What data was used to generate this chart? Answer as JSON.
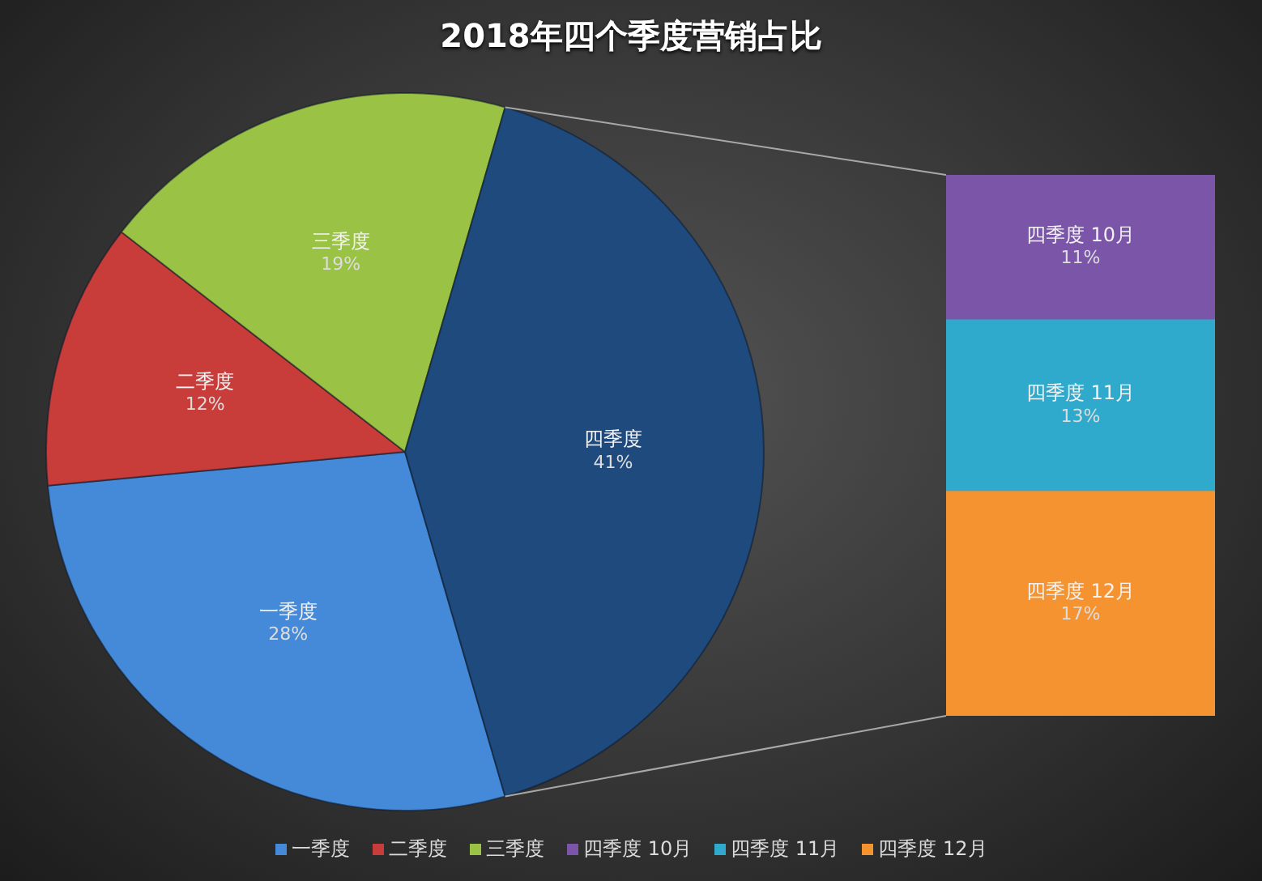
{
  "chart_data": [
    {
      "type": "pie",
      "title": "2018年四个季度营销占比",
      "categories": [
        "一季度",
        "二季度",
        "三季度",
        "四季度"
      ],
      "values": [
        28,
        12,
        19,
        41
      ],
      "colors": [
        "#4589d9",
        "#c83c3a",
        "#9ac244",
        "#1f4a7e"
      ],
      "value_labels": [
        "28%",
        "12%",
        "19%",
        "41%"
      ],
      "legend": "bottom"
    },
    {
      "type": "bar",
      "stacked": true,
      "categories": [
        null
      ],
      "series": [
        {
          "name": "四季度 12月",
          "color": "#f59330",
          "values": [
            17
          ],
          "value_labels": [
            "17%"
          ]
        },
        {
          "name": "四季度 11月",
          "color": "#2fa9cc",
          "values": [
            13
          ],
          "value_labels": [
            "13%"
          ]
        },
        {
          "name": "四季度 10月",
          "color": "#7b55a8",
          "values": [
            11
          ],
          "value_labels": [
            "11%"
          ]
        }
      ],
      "legend": "bottom"
    }
  ]
}
